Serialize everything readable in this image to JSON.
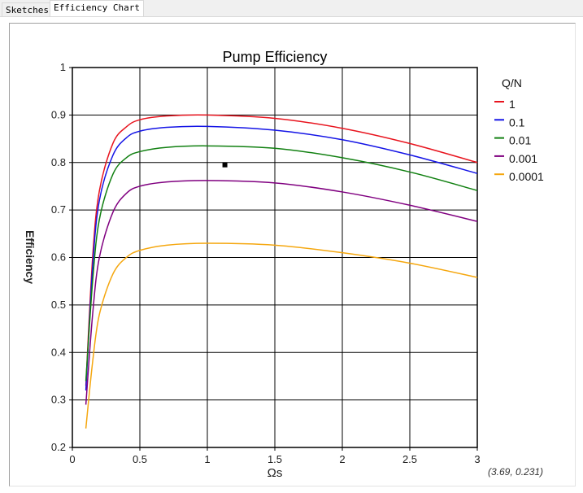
{
  "tabs": [
    {
      "label": "Sketches",
      "active": false
    },
    {
      "label": "Efficiency Chart",
      "active": true
    }
  ],
  "coordinate_readout": "(3.69, 0.231)",
  "chart_data": {
    "type": "line",
    "title": "Pump Efficiency",
    "xlabel": "Ωs",
    "ylabel": "Efficiency",
    "xlim": [
      0,
      3
    ],
    "ylim": [
      0.2,
      1
    ],
    "xticks": [
      0,
      0.5,
      1,
      1.5,
      2,
      2.5,
      3
    ],
    "xtick_labels": [
      "0",
      "0.5",
      "1",
      "1.5",
      "2",
      "2.5",
      "3"
    ],
    "yticks": [
      0.2,
      0.3,
      0.4,
      0.5,
      0.6,
      0.7,
      0.8,
      0.9,
      1
    ],
    "ytick_labels": [
      "0.2",
      "0.3",
      "0.4",
      "0.5",
      "0.6",
      "0.7",
      "0.8",
      "0.9",
      "1"
    ],
    "grid": true,
    "legend_title": "Q/N",
    "legend_position": "right",
    "x": [
      0.1,
      0.15,
      0.2,
      0.3,
      0.4,
      0.5,
      0.7,
      1.0,
      1.5,
      2.0,
      2.5,
      3.0
    ],
    "series": [
      {
        "name": "1",
        "color": "#e8141e",
        "values": [
          0.33,
          0.6,
          0.74,
          0.84,
          0.875,
          0.89,
          0.898,
          0.9,
          0.893,
          0.872,
          0.84,
          0.8
        ]
      },
      {
        "name": "0.1",
        "color": "#1414e6",
        "values": [
          0.32,
          0.58,
          0.72,
          0.815,
          0.852,
          0.866,
          0.874,
          0.876,
          0.868,
          0.848,
          0.816,
          0.777
        ]
      },
      {
        "name": "0.01",
        "color": "#118011",
        "values": [
          0.34,
          0.55,
          0.68,
          0.775,
          0.81,
          0.823,
          0.832,
          0.835,
          0.83,
          0.81,
          0.78,
          0.741
        ]
      },
      {
        "name": "0.001",
        "color": "#800080",
        "values": [
          0.29,
          0.48,
          0.6,
          0.695,
          0.735,
          0.75,
          0.759,
          0.762,
          0.757,
          0.738,
          0.71,
          0.676
        ]
      },
      {
        "name": "0.0001",
        "color": "#f5a70f",
        "values": [
          0.24,
          0.38,
          0.48,
          0.565,
          0.6,
          0.615,
          0.626,
          0.63,
          0.626,
          0.61,
          0.588,
          0.558
        ]
      }
    ],
    "marker": {
      "x": 1.13,
      "y": 0.795
    }
  }
}
